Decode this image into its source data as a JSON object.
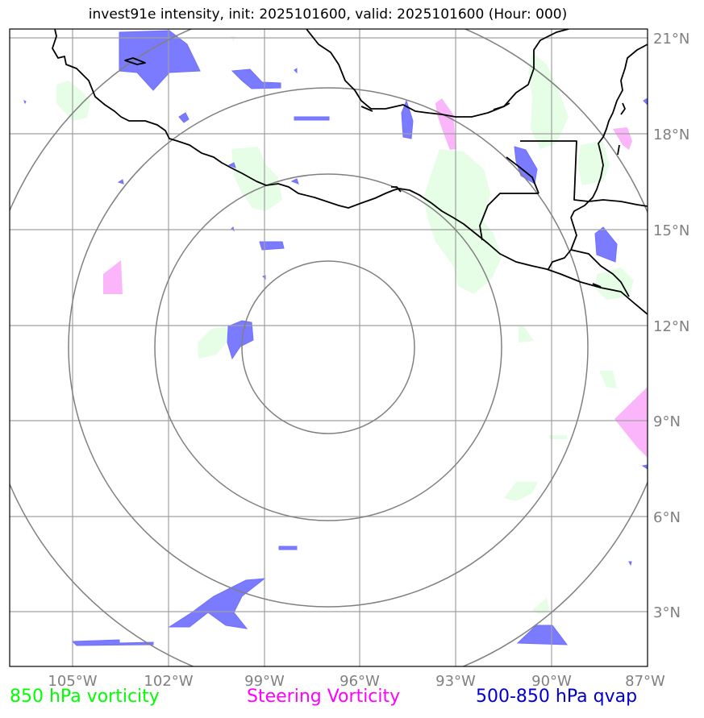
{
  "title": "invest91e intensity, init: 2025101600, valid: 2025101600 (Hour: 000)",
  "longitude_labels": [
    "105°W",
    "102°W",
    "99°W",
    "96°W",
    "93°W",
    "90°W",
    "87°W"
  ],
  "latitude_labels": [
    "21°N",
    "18°N",
    "15°N",
    "12°N",
    "9°N",
    "6°N",
    "3°N"
  ],
  "legend": [
    {
      "label": "850 hPa vorticity",
      "color": "#00ff00"
    },
    {
      "label": "Steering Vorticity",
      "color": "#ff00ff"
    },
    {
      "label": "500-850 hPa qvap",
      "color": "#0000cc"
    }
  ],
  "colors": {
    "vorticity_fill": "#e6fde6",
    "steering_fill": "#fbb6fb",
    "qvap_fill": "#7b7bff",
    "grid": "#a0a0a0",
    "range_rings": "#808080",
    "coastline": "#000000"
  }
}
